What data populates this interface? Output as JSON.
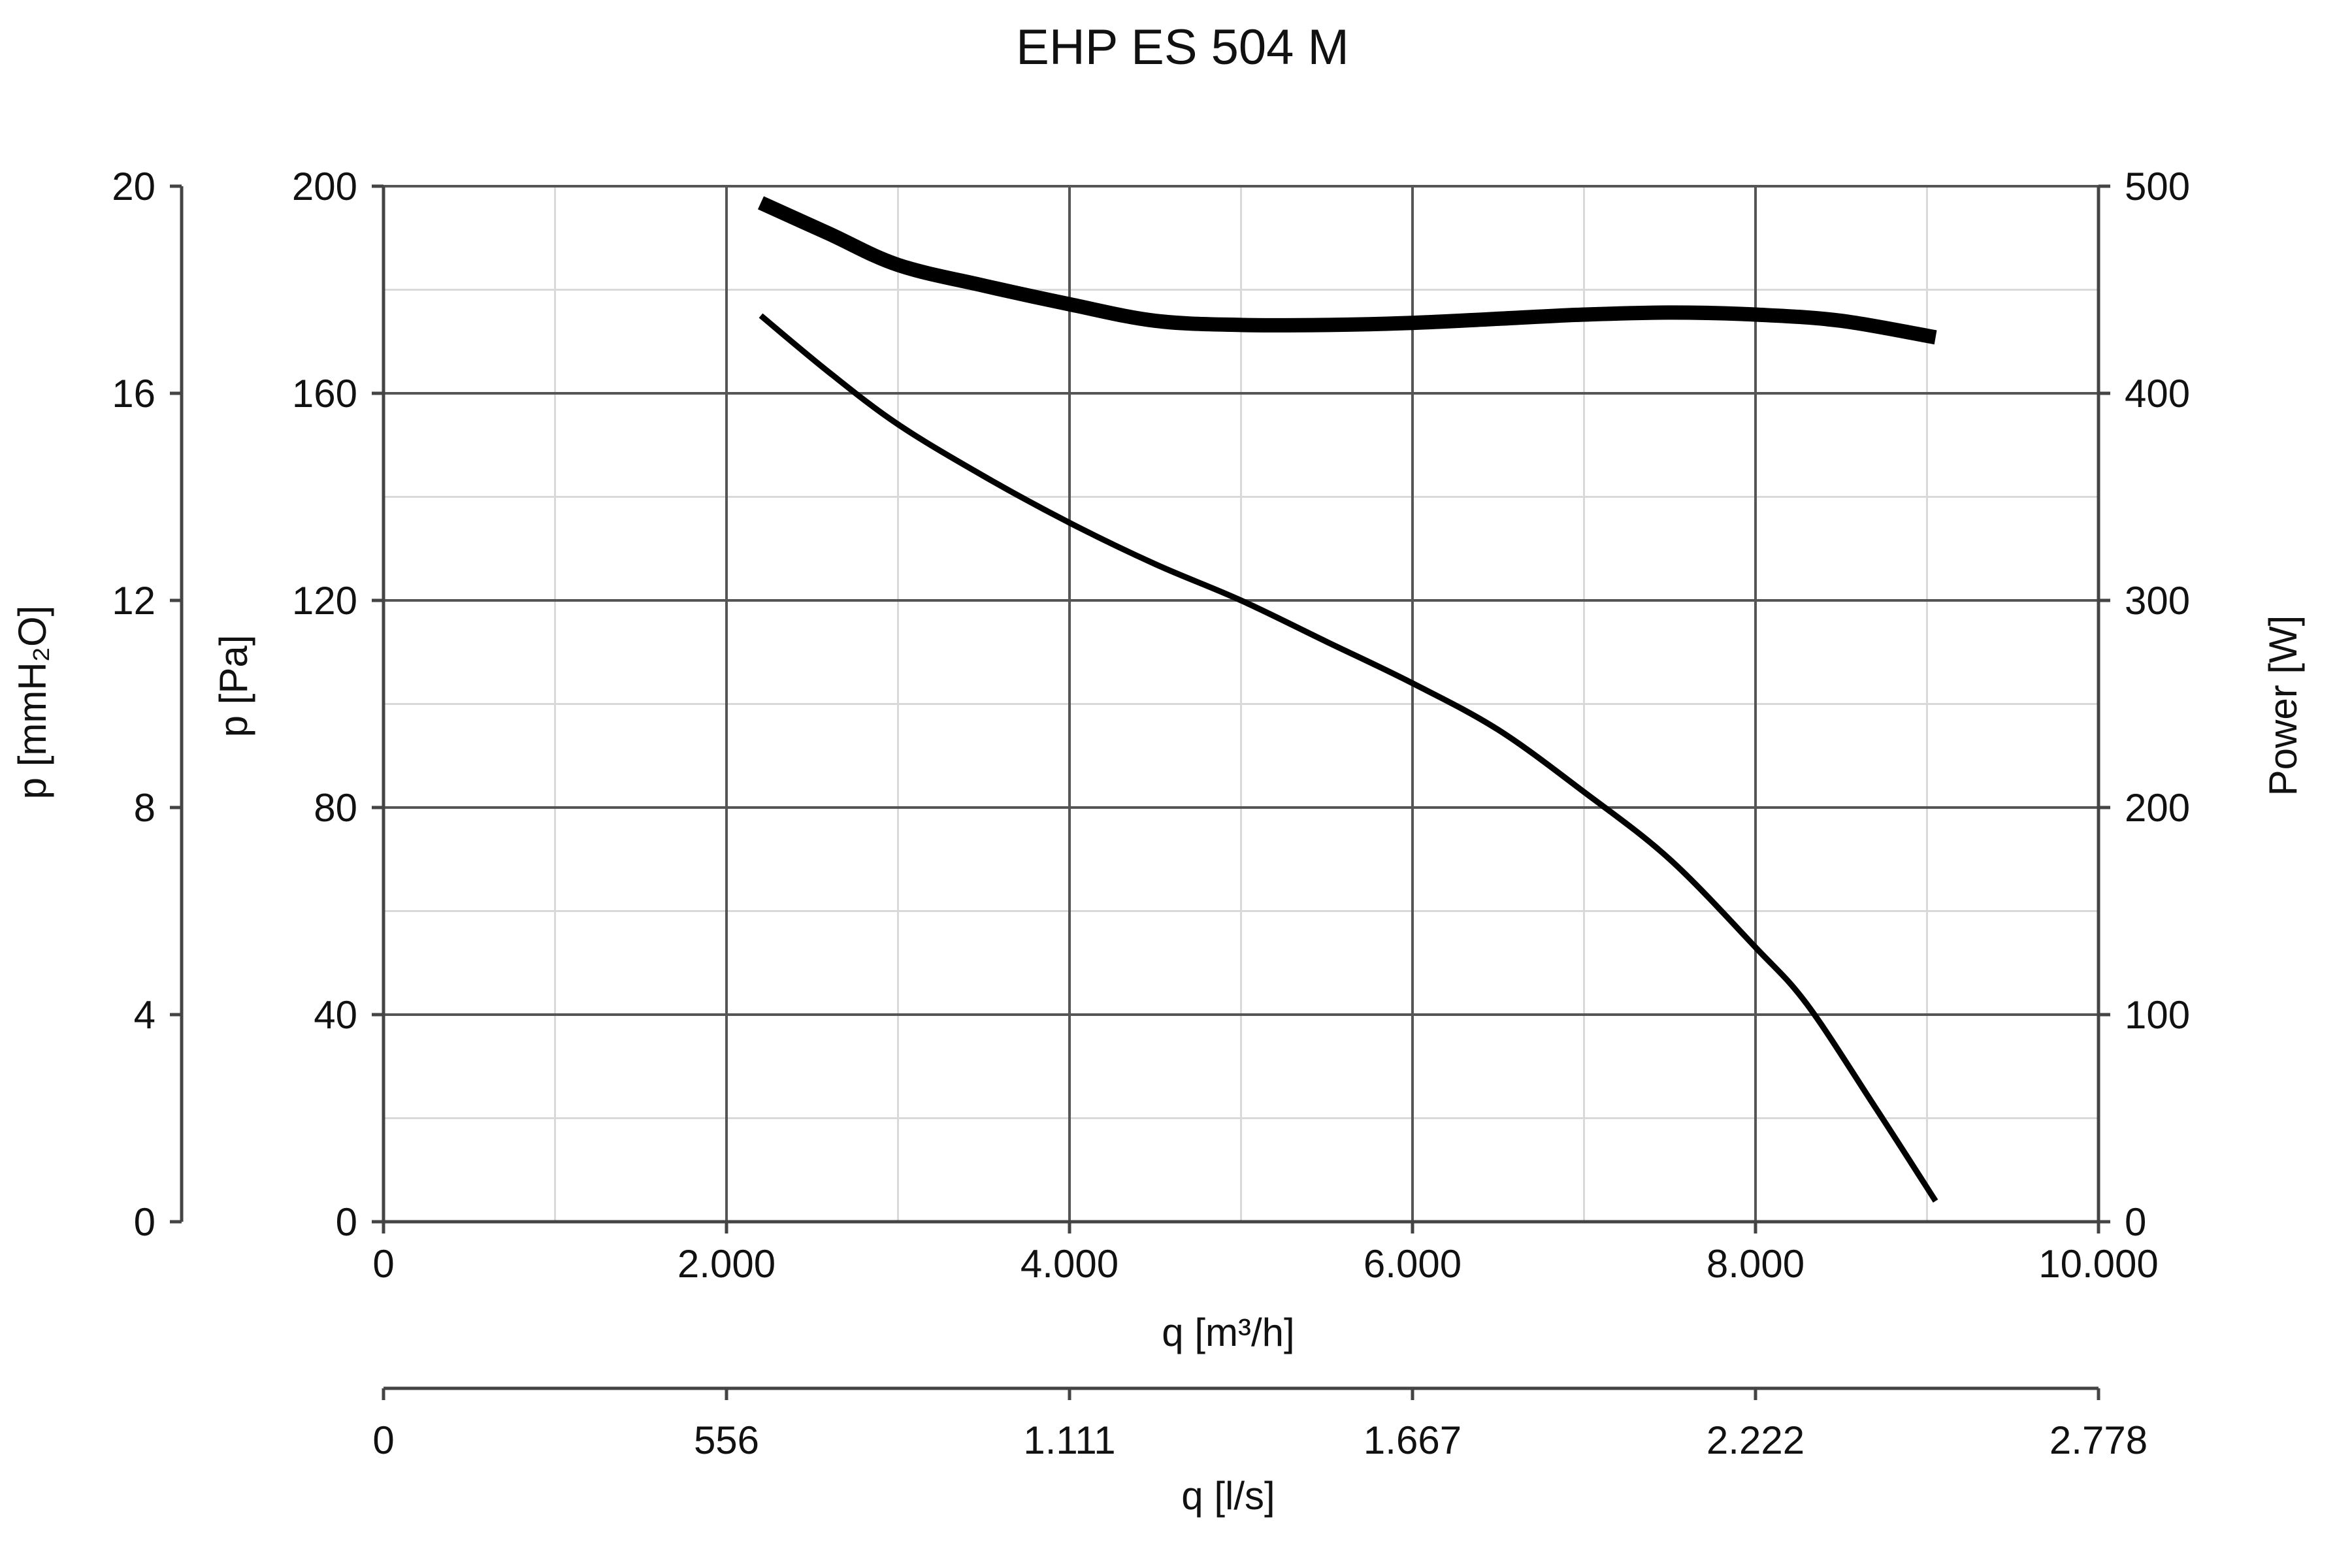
{
  "chart_data": {
    "type": "line",
    "title": "EHP ES 504 M",
    "x_axis": {
      "label": "q [m³/h]",
      "range": [
        0,
        10000
      ],
      "ticks": [
        0,
        2000,
        4000,
        6000,
        8000,
        10000
      ],
      "tick_labels": [
        "0",
        "2.000",
        "4.000",
        "6.000",
        "8.000",
        "10.000"
      ],
      "minor_step": 1000,
      "grid": true
    },
    "x_axis_secondary": {
      "label": "q [l/s]",
      "range": [
        0,
        2778
      ],
      "tick_labels": [
        "0",
        "556",
        "1.111",
        "1.667",
        "2.222",
        "2.778"
      ]
    },
    "y_axis_left": {
      "label": "p [Pa]",
      "range": [
        0,
        200
      ],
      "ticks": [
        0,
        40,
        80,
        120,
        160,
        200
      ],
      "tick_labels": [
        "0",
        "40",
        "80",
        "120",
        "160",
        "200"
      ],
      "minor_step": 20,
      "grid": true
    },
    "y_axis_left_outer": {
      "label": "p [mmH₂O]",
      "range": [
        0,
        20
      ],
      "tick_labels": [
        "0",
        "4",
        "8",
        "12",
        "16",
        "20"
      ]
    },
    "y_axis_right": {
      "label": "Power [W]",
      "range": [
        0,
        500
      ],
      "ticks": [
        0,
        100,
        200,
        300,
        400,
        500
      ],
      "tick_labels": [
        "0",
        "100",
        "200",
        "300",
        "400",
        "500"
      ]
    },
    "series": [
      {
        "axis": "left",
        "line_weight": "thin",
        "color": "#000000",
        "x": [
          2200,
          2600,
          3000,
          3500,
          4000,
          4500,
          5000,
          5500,
          6000,
          6500,
          7000,
          7500,
          8000,
          8300,
          8700,
          9050
        ],
        "y": [
          175,
          164,
          154,
          144,
          135,
          127,
          120,
          112,
          104,
          95,
          83,
          70,
          53,
          42,
          22,
          4
        ]
      },
      {
        "axis": "right",
        "line_weight": "thick",
        "color": "#000000",
        "x": [
          2200,
          2600,
          3000,
          3500,
          4000,
          4500,
          5000,
          5500,
          6000,
          6500,
          7000,
          7500,
          8000,
          8500,
          9050
        ],
        "y": [
          492,
          477,
          462,
          452,
          443,
          435,
          433,
          433,
          434,
          436,
          438,
          439,
          438,
          435,
          427
        ]
      }
    ]
  }
}
